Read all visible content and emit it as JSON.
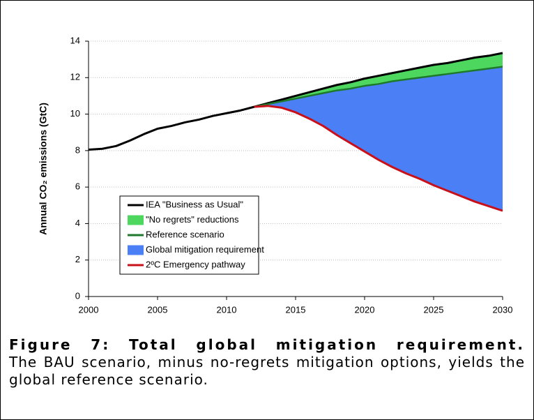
{
  "chart_data": {
    "type": "line",
    "y_label": "Annual CO₂ emissions (GtC)",
    "x": [
      2000,
      2001,
      2002,
      2003,
      2004,
      2005,
      2006,
      2007,
      2008,
      2009,
      2010,
      2011,
      2012,
      2013,
      2014,
      2015,
      2016,
      2017,
      2018,
      2019,
      2020,
      2021,
      2022,
      2023,
      2024,
      2025,
      2026,
      2027,
      2028,
      2029,
      2030
    ],
    "series": [
      {
        "name": "IEA \"Business as Usual\"",
        "type": "line",
        "color": "#000000",
        "values": [
          8.05,
          8.1,
          8.25,
          8.55,
          8.9,
          9.2,
          9.35,
          9.55,
          9.7,
          9.9,
          10.05,
          10.2,
          10.4,
          10.6,
          10.8,
          11.0,
          11.2,
          11.4,
          11.6,
          11.75,
          11.95,
          12.1,
          12.25,
          12.4,
          12.55,
          12.7,
          12.8,
          12.95,
          13.1,
          13.2,
          13.35
        ]
      },
      {
        "name": "\"No regrets\" reductions",
        "type": "area",
        "color": "#4dd75f"
      },
      {
        "name": "Reference scenario",
        "type": "line",
        "color": "#1e7a2a",
        "values": [
          null,
          null,
          null,
          null,
          null,
          null,
          null,
          null,
          null,
          null,
          null,
          null,
          10.4,
          10.55,
          10.7,
          10.85,
          11.0,
          11.15,
          11.3,
          11.4,
          11.55,
          11.65,
          11.8,
          11.9,
          12.0,
          12.1,
          12.2,
          12.3,
          12.4,
          12.5,
          12.6
        ]
      },
      {
        "name": "Global mitigation requirement",
        "type": "area",
        "color": "#4a7ff5"
      },
      {
        "name": "2ºC Emergency pathway",
        "type": "line",
        "color": "#c8101a",
        "values": [
          null,
          null,
          null,
          null,
          null,
          null,
          null,
          null,
          null,
          null,
          null,
          null,
          10.4,
          10.45,
          10.35,
          10.1,
          9.75,
          9.35,
          8.85,
          8.4,
          7.95,
          7.5,
          7.1,
          6.75,
          6.45,
          6.1,
          5.8,
          5.5,
          5.2,
          4.95,
          4.7
        ]
      }
    ],
    "xlim": [
      2000,
      2030
    ],
    "xticks": [
      2000,
      2005,
      2010,
      2015,
      2020,
      2025,
      2030
    ],
    "ylim": [
      0,
      14
    ],
    "yticks": [
      0,
      2,
      4,
      6,
      8,
      10,
      12,
      14
    ],
    "grid": true,
    "legend": "lower left"
  },
  "caption": {
    "title": "Figure 7: Total global mitigation requirement.",
    "text": "The BAU scenario, minus no-regrets mitigation options, yields the global reference scenario."
  }
}
